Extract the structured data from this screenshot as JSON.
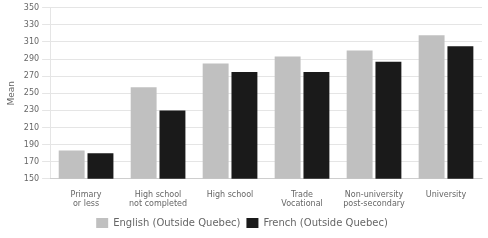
{
  "chart_data": {
    "type": "bar",
    "ylabel": "Mean",
    "categories": [
      "Primary\nor less",
      "High school\nnot completed",
      "High school",
      "Trade\nVocational",
      "Non-university\npost-secondary",
      "University"
    ],
    "series": [
      {
        "name": "English (Outside Quebec)",
        "color": "#c0c0c0",
        "values": [
          183,
          257,
          285,
          293,
          300,
          318
        ]
      },
      {
        "name": "French (Outside Quebec)",
        "color": "#1a1a1a",
        "values": [
          180,
          230,
          275,
          275,
          287,
          305
        ]
      }
    ],
    "ylim": [
      150,
      350
    ],
    "yticks": [
      150,
      170,
      190,
      210,
      230,
      250,
      270,
      290,
      310,
      330,
      350
    ],
    "grid": true,
    "legend": "bottom"
  }
}
